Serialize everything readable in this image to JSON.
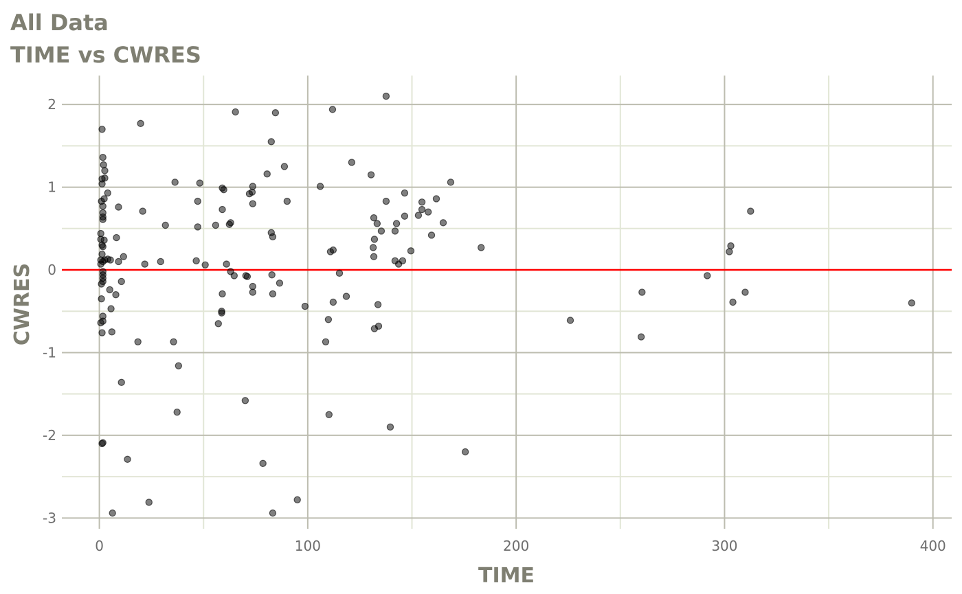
{
  "chart_data": {
    "type": "scatter",
    "title": "All Data",
    "subtitle": "TIME vs CWRES",
    "xlabel": "TIME",
    "ylabel": "CWRES",
    "xlim": [
      -18,
      409
    ],
    "ylim": [
      -3.13,
      2.35
    ],
    "xticks": [
      0,
      100,
      200,
      300,
      400
    ],
    "xtick_labels": [
      "0",
      "100",
      "200",
      "300",
      "400"
    ],
    "xminor": [
      50,
      150,
      250,
      350
    ],
    "yticks": [
      2,
      1,
      0,
      -1,
      -2,
      -3
    ],
    "ytick_labels": [
      "2",
      "1",
      "0",
      "-1",
      "-2",
      "-3"
    ],
    "yminor": [
      1.5,
      0.5,
      -0.5,
      -1.5,
      -2.5
    ],
    "grid": true,
    "reference_line": {
      "y": 0,
      "color": "#ff0000"
    },
    "point_color": "#000000",
    "point_alpha": 0.5,
    "points": [
      [
        1.3,
        1.7
      ],
      [
        1.7,
        1.36
      ],
      [
        2.0,
        1.27
      ],
      [
        2.6,
        1.2
      ],
      [
        2.6,
        1.11
      ],
      [
        1.3,
        1.1
      ],
      [
        1.3,
        1.04
      ],
      [
        4.0,
        0.93
      ],
      [
        2.3,
        0.86
      ],
      [
        1.0,
        0.83
      ],
      [
        1.7,
        0.77
      ],
      [
        1.7,
        0.69
      ],
      [
        1.7,
        0.64
      ],
      [
        1.7,
        0.61
      ],
      [
        0.7,
        0.44
      ],
      [
        0.7,
        0.37
      ],
      [
        2.3,
        0.36
      ],
      [
        1.3,
        0.3
      ],
      [
        1.7,
        0.28
      ],
      [
        1.3,
        0.19
      ],
      [
        0.7,
        0.12
      ],
      [
        0.7,
        0.07
      ],
      [
        1.7,
        0.1
      ],
      [
        2.6,
        0.12
      ],
      [
        4.0,
        0.13
      ],
      [
        5.3,
        0.12
      ],
      [
        1.7,
        -0.02
      ],
      [
        1.7,
        -0.06
      ],
      [
        1.7,
        -0.1
      ],
      [
        1.7,
        -0.14
      ],
      [
        1.0,
        -0.17
      ],
      [
        1.0,
        -0.35
      ],
      [
        1.7,
        -0.56
      ],
      [
        1.7,
        -0.62
      ],
      [
        0.7,
        -0.64
      ],
      [
        1.3,
        -0.76
      ],
      [
        1.7,
        -2.09
      ],
      [
        1.3,
        -2.1
      ],
      [
        5.0,
        -0.24
      ],
      [
        5.6,
        -0.47
      ],
      [
        6.0,
        -0.75
      ],
      [
        6.3,
        -2.94
      ],
      [
        8.2,
        0.39
      ],
      [
        7.9,
        -0.3
      ],
      [
        9.2,
        0.76
      ],
      [
        9.2,
        0.1
      ],
      [
        10.6,
        -0.14
      ],
      [
        11.6,
        0.16
      ],
      [
        10.6,
        -1.36
      ],
      [
        13.5,
        -2.29
      ],
      [
        18.5,
        -0.87
      ],
      [
        19.8,
        1.77
      ],
      [
        20.8,
        0.71
      ],
      [
        21.8,
        0.07
      ],
      [
        23.8,
        -2.81
      ],
      [
        29.4,
        0.1
      ],
      [
        31.7,
        0.54
      ],
      [
        35.6,
        -0.87
      ],
      [
        36.3,
        1.06
      ],
      [
        37.3,
        -1.72
      ],
      [
        38.0,
        -1.16
      ],
      [
        46.5,
        0.11
      ],
      [
        47.2,
        0.83
      ],
      [
        47.2,
        0.52
      ],
      [
        48.2,
        1.05
      ],
      [
        50.8,
        0.06
      ],
      [
        55.8,
        0.54
      ],
      [
        57.1,
        -0.65
      ],
      [
        58.7,
        -0.5
      ],
      [
        58.7,
        -0.52
      ],
      [
        59.0,
        -0.29
      ],
      [
        59.0,
        0.73
      ],
      [
        59.0,
        0.99
      ],
      [
        59.7,
        0.97
      ],
      [
        61.0,
        0.07
      ],
      [
        62.4,
        0.55
      ],
      [
        63.0,
        0.57
      ],
      [
        63.0,
        -0.02
      ],
      [
        64.7,
        -0.07
      ],
      [
        65.3,
        1.91
      ],
      [
        70.0,
        -1.58
      ],
      [
        70.3,
        -0.07
      ],
      [
        71.0,
        -0.08
      ],
      [
        72.0,
        0.92
      ],
      [
        73.3,
        0.94
      ],
      [
        73.6,
        1.01
      ],
      [
        73.6,
        0.8
      ],
      [
        73.6,
        -0.2
      ],
      [
        73.6,
        -0.27
      ],
      [
        78.5,
        -2.34
      ],
      [
        80.5,
        1.16
      ],
      [
        82.5,
        1.55
      ],
      [
        82.5,
        0.45
      ],
      [
        83.2,
        0.4
      ],
      [
        82.8,
        -0.06
      ],
      [
        83.2,
        -0.29
      ],
      [
        83.2,
        -2.94
      ],
      [
        84.5,
        1.9
      ],
      [
        86.5,
        -0.16
      ],
      [
        88.8,
        1.25
      ],
      [
        90.1,
        0.83
      ],
      [
        95.0,
        -2.78
      ],
      [
        98.7,
        -0.44
      ],
      [
        106.0,
        1.01
      ],
      [
        108.6,
        -0.87
      ],
      [
        109.9,
        -0.6
      ],
      [
        110.2,
        -1.75
      ],
      [
        110.9,
        0.22
      ],
      [
        111.9,
        1.94
      ],
      [
        112.2,
        -0.39
      ],
      [
        112.2,
        0.24
      ],
      [
        115.2,
        -0.04
      ],
      [
        118.5,
        -0.32
      ],
      [
        121.1,
        1.3
      ],
      [
        130.4,
        1.15
      ],
      [
        131.4,
        0.27
      ],
      [
        131.7,
        0.63
      ],
      [
        131.7,
        0.16
      ],
      [
        132.0,
        0.37
      ],
      [
        132.0,
        -0.71
      ],
      [
        133.3,
        0.56
      ],
      [
        133.7,
        -0.42
      ],
      [
        134.0,
        -0.68
      ],
      [
        135.3,
        0.47
      ],
      [
        137.6,
        2.1
      ],
      [
        137.6,
        0.83
      ],
      [
        139.6,
        -1.9
      ],
      [
        141.9,
        0.47
      ],
      [
        141.9,
        0.11
      ],
      [
        142.6,
        0.56
      ],
      [
        143.6,
        0.07
      ],
      [
        145.5,
        0.11
      ],
      [
        146.5,
        0.65
      ],
      [
        146.5,
        0.93
      ],
      [
        149.5,
        0.23
      ],
      [
        153.1,
        0.66
      ],
      [
        154.8,
        0.82
      ],
      [
        154.8,
        0.73
      ],
      [
        157.8,
        0.7
      ],
      [
        159.4,
        0.42
      ],
      [
        161.7,
        0.86
      ],
      [
        165.0,
        0.57
      ],
      [
        168.6,
        1.06
      ],
      [
        175.6,
        -2.2
      ],
      [
        183.2,
        0.27
      ],
      [
        226.0,
        -0.61
      ],
      [
        260.4,
        -0.27
      ],
      [
        260.0,
        -0.81
      ],
      [
        291.7,
        -0.07
      ],
      [
        302.3,
        0.22
      ],
      [
        303.0,
        0.29
      ],
      [
        304.0,
        -0.39
      ],
      [
        309.9,
        -0.27
      ],
      [
        312.5,
        0.71
      ],
      [
        389.8,
        -0.4
      ]
    ]
  }
}
